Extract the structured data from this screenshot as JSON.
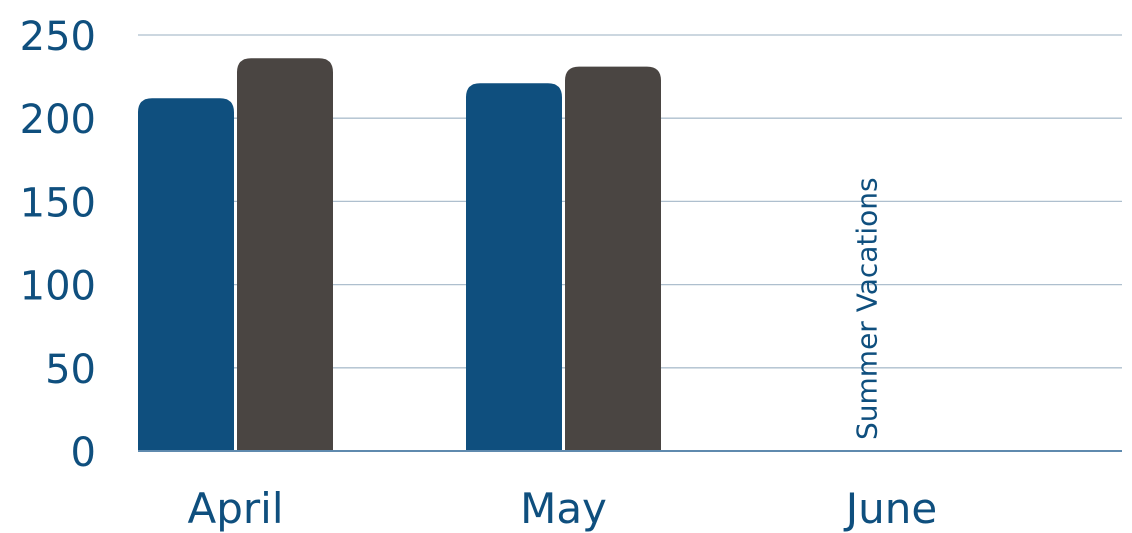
{
  "chart_data": {
    "type": "bar",
    "title": "",
    "xlabel": "",
    "ylabel": "",
    "categories": [
      "April",
      "May",
      "June"
    ],
    "series": [
      {
        "values": [
          212,
          221,
          null
        ],
        "color": "#0F4F7E"
      },
      {
        "values": [
          236,
          231,
          null
        ],
        "color": "#4A4542"
      }
    ],
    "ylim": [
      0,
      250
    ],
    "yticks": [
      0,
      50,
      100,
      150,
      200,
      250
    ],
    "ytick_labels": [
      "0",
      "50",
      "100",
      "150",
      "200",
      "250"
    ],
    "grid": true,
    "gridline_color": "#AEBFCE",
    "axis_color": "#5F8AAE",
    "text_color": "#0F4F7E",
    "legend": "none",
    "annotations": [
      {
        "category": "June",
        "text": "Summer Vacations",
        "orientation": "vertical"
      }
    ]
  }
}
